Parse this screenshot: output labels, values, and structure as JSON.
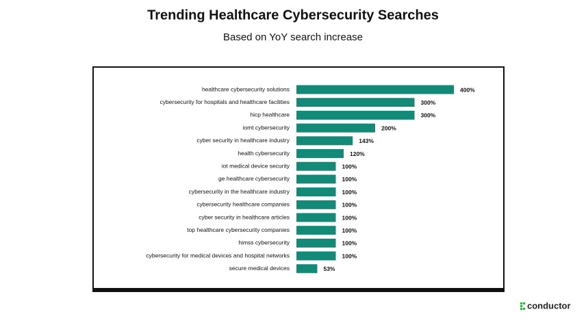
{
  "chart_data": {
    "type": "hbar",
    "title": "Trending Healthcare Cybersecurity Searches",
    "subtitle": "Based on YoY search increase",
    "categories": [
      "healthcare cybersecurity solutions",
      "cybersecurity for hospitals and healthcare facilities",
      "hicp healthcare",
      "iomt cybersecurity",
      "cyber security in healthcare industry",
      "health cybersecurity",
      "iot medical device security",
      "ge healthcare cybersecurity",
      "cybersecurity in the healthcare industry",
      "cybersecurity healthcare companies",
      "cyber security in healthcare articles",
      "top healthcare cybersecurity companies",
      "himss cybersecurity",
      "cybersecurity for medical devices and hospital networks",
      "secure medical devices"
    ],
    "values": [
      400,
      300,
      300,
      200,
      143,
      120,
      100,
      100,
      100,
      100,
      100,
      100,
      100,
      100,
      53
    ],
    "value_labels": [
      "400%",
      "300%",
      "300%",
      "200%",
      "143%",
      "120%",
      "100%",
      "100%",
      "100%",
      "100%",
      "100%",
      "100%",
      "100%",
      "100%",
      "53%"
    ],
    "color": "#138a78"
  },
  "brand": "conductor"
}
